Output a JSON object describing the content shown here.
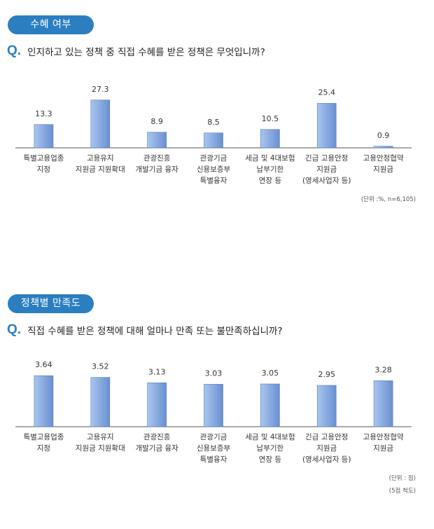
{
  "chart_data": [
    {
      "type": "bar",
      "section_title": "수혜 여부",
      "question_mark": "Q.",
      "question": "인지하고 있는 정책 중 직접 수혜를 받은 정책은 무엇입니까?",
      "categories": [
        [
          "특별고용업종",
          "지정"
        ],
        [
          "고용유지",
          "지원금 지원확대"
        ],
        [
          "관광진흥",
          "개발기금 융자"
        ],
        [
          "관광기금",
          "신용보증부",
          "특별융자"
        ],
        [
          "세금 및 4대보험",
          "납부기한",
          "연장 등"
        ],
        [
          "긴급 고용안정",
          "지원금",
          "(영세사업자 등)"
        ],
        [
          "고용안정협약",
          "지원금"
        ]
      ],
      "values": [
        13.3,
        27.3,
        8.9,
        8.5,
        10.5,
        25.4,
        0.9
      ],
      "value_labels": [
        "13.3",
        "27.3",
        "8.9",
        "8.5",
        "10.5",
        "25.4",
        "0.9"
      ],
      "ylim": [
        0,
        30
      ],
      "unit_note": "(단위 :%, n=6,105)"
    },
    {
      "type": "bar",
      "section_title": "정책별 만족도",
      "question_mark": "Q.",
      "question": "직접 수혜를 받은 정책에 대해 얼마나 만족 또는 불만족하십니까?",
      "categories": [
        [
          "특별고용업종",
          "지정"
        ],
        [
          "고용유지",
          "지원금 지원확대"
        ],
        [
          "관광진흥",
          "개발기금 융자"
        ],
        [
          "관광기금",
          "신용보증부",
          "특별융자"
        ],
        [
          "세금 및 4대보험",
          "납부기한",
          "연장 등"
        ],
        [
          "긴급 고용안정",
          "지원금",
          "(영세사업자 등)"
        ],
        [
          "고용안정협약",
          "지원금"
        ]
      ],
      "values": [
        3.64,
        3.52,
        3.13,
        3.03,
        3.05,
        2.95,
        3.28
      ],
      "value_labels": [
        "3.64",
        "3.52",
        "3.13",
        "3.03",
        "3.05",
        "2.95",
        "3.28"
      ],
      "ylim": [
        0,
        5
      ],
      "unit_note": "(단위 : 점)",
      "scale_note": "(5점 척도)"
    }
  ],
  "colors": {
    "accent": "#2b7fc0",
    "bar_light": "#a9c6ee",
    "bar_dark": "#6a8fd1",
    "bar_edge": "#4f78bd",
    "baseline": "#555555"
  }
}
